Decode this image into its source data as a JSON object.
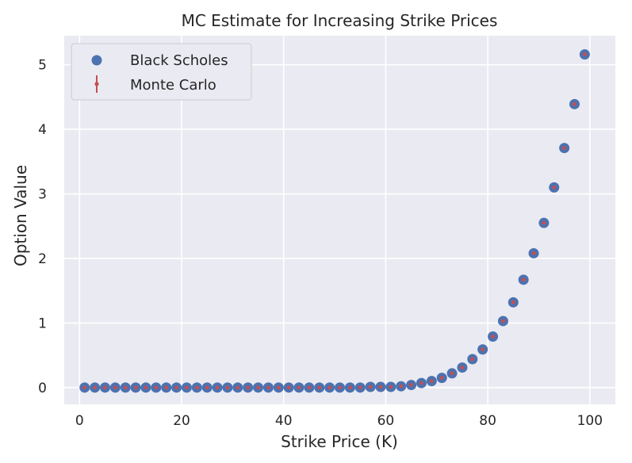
{
  "chart_data": {
    "type": "scatter",
    "title": "MC Estimate for Increasing Strike Prices",
    "xlabel": "Strike Price (K)",
    "ylabel": "Option Value",
    "xlim": [
      -3,
      105
    ],
    "ylim": [
      -0.26,
      5.45
    ],
    "xticks": [
      0,
      20,
      40,
      60,
      80,
      100
    ],
    "yticks": [
      0,
      1,
      2,
      3,
      4,
      5
    ],
    "grid": true,
    "legend_position": "top-left",
    "colors": {
      "black_scholes": "#4c72b0",
      "monte_carlo": "#c44e52",
      "plot_bg": "#eaeaf2",
      "grid": "#ffffff"
    },
    "x": [
      1,
      3,
      5,
      7,
      9,
      11,
      13,
      15,
      17,
      19,
      21,
      23,
      25,
      27,
      29,
      31,
      33,
      35,
      37,
      39,
      41,
      43,
      45,
      47,
      49,
      51,
      53,
      55,
      57,
      59,
      61,
      63,
      65,
      67,
      69,
      71,
      73,
      75,
      77,
      79,
      81,
      83,
      85,
      87,
      89,
      91,
      93,
      95,
      97,
      99
    ],
    "series": [
      {
        "name": "Black Scholes",
        "marker": "circle",
        "values": [
          0,
          0,
          0,
          0,
          0,
          0,
          0,
          0,
          0,
          0,
          0,
          0,
          0,
          0,
          0,
          0,
          0,
          0,
          0,
          0,
          0,
          0,
          0,
          0,
          0,
          0,
          0,
          0,
          0.01,
          0.01,
          0.01,
          0.02,
          0.04,
          0.07,
          0.1,
          0.15,
          0.22,
          0.31,
          0.44,
          0.59,
          0.79,
          1.03,
          1.32,
          1.67,
          2.08,
          2.55,
          3.1,
          3.71,
          4.39,
          5.16
        ]
      },
      {
        "name": "Monte Carlo",
        "marker": "errorbar-point",
        "values": [
          0,
          0,
          0,
          0,
          0,
          0,
          0,
          0,
          0,
          0,
          0,
          0,
          0,
          0,
          0,
          0,
          0,
          0,
          0,
          0,
          0,
          0,
          0,
          0,
          0,
          0,
          0,
          0,
          0.01,
          0.01,
          0.01,
          0.02,
          0.04,
          0.07,
          0.1,
          0.15,
          0.22,
          0.31,
          0.44,
          0.59,
          0.79,
          1.03,
          1.32,
          1.67,
          2.08,
          2.55,
          3.1,
          3.71,
          4.39,
          5.16
        ]
      }
    ]
  }
}
